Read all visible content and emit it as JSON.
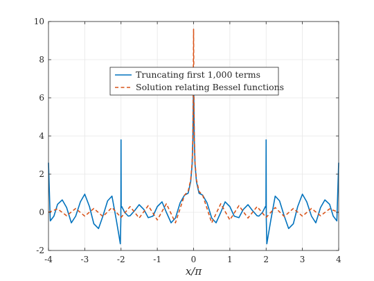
{
  "chart_data": {
    "type": "line",
    "xlabel": "x/π",
    "ylabel": "",
    "xlim": [
      -4,
      4
    ],
    "ylim": [
      -2,
      10
    ],
    "xticks": [
      -4,
      -3,
      -2,
      -1,
      0,
      1,
      2,
      3,
      4
    ],
    "xtick_labels": [
      "-4",
      "-3",
      "-2",
      "-1",
      "0",
      "1",
      "2",
      "3",
      "4"
    ],
    "yticks": [
      -2,
      0,
      2,
      4,
      6,
      8,
      10
    ],
    "ytick_labels": [
      "-2",
      "0",
      "2",
      "4",
      "6",
      "8",
      "10"
    ],
    "grid": true,
    "legend_position": "upper-center",
    "series": [
      {
        "name": "Truncating first 1,000 terms",
        "color": "#0072BD",
        "style": "solid",
        "x": [
          -4.0,
          -3.95,
          -3.85,
          -3.75,
          -3.62,
          -3.5,
          -3.37,
          -3.25,
          -3.12,
          -3.0,
          -2.87,
          -2.75,
          -2.62,
          -2.5,
          -2.37,
          -2.25,
          -2.13,
          -2.05,
          -2.02,
          -2.005,
          -2.0,
          -1.995,
          -1.98,
          -1.9,
          -1.8,
          -1.75,
          -1.62,
          -1.5,
          -1.37,
          -1.25,
          -1.12,
          -1.0,
          -0.87,
          -0.75,
          -0.62,
          -0.5,
          -0.37,
          -0.25,
          -0.15,
          -0.08,
          -0.04,
          -0.02,
          -0.01,
          0.0,
          0.01,
          0.02,
          0.04,
          0.08,
          0.15,
          0.25,
          0.37,
          0.5,
          0.62,
          0.75,
          0.87,
          1.0,
          1.12,
          1.25,
          1.37,
          1.5,
          1.62,
          1.75,
          1.8,
          1.9,
          1.98,
          1.995,
          2.0,
          2.005,
          2.02,
          2.05,
          2.13,
          2.25,
          2.37,
          2.5,
          2.62,
          2.75,
          2.87,
          3.0,
          3.12,
          3.25,
          3.37,
          3.5,
          3.62,
          3.75,
          3.85,
          3.95,
          4.0
        ],
        "y": [
          2.6,
          -0.45,
          -0.2,
          0.42,
          0.65,
          0.25,
          -0.55,
          -0.2,
          0.55,
          0.95,
          0.3,
          -0.6,
          -0.85,
          -0.2,
          0.6,
          0.85,
          -0.4,
          -1.3,
          -1.65,
          -0.4,
          3.8,
          0.25,
          0.3,
          0.0,
          -0.2,
          -0.18,
          0.1,
          0.4,
          0.15,
          -0.28,
          -0.2,
          0.3,
          0.55,
          0.0,
          -0.55,
          -0.3,
          0.5,
          0.9,
          1.0,
          1.6,
          2.5,
          3.8,
          5.5,
          7.4,
          5.5,
          3.8,
          2.5,
          1.6,
          1.0,
          0.9,
          0.5,
          -0.3,
          -0.55,
          0.0,
          0.55,
          0.3,
          -0.2,
          -0.28,
          0.15,
          0.4,
          0.1,
          -0.18,
          -0.2,
          0.0,
          0.3,
          0.25,
          3.8,
          -0.4,
          -1.65,
          -1.3,
          -0.4,
          0.85,
          0.6,
          -0.2,
          -0.85,
          -0.6,
          0.3,
          0.95,
          0.55,
          -0.2,
          -0.55,
          0.25,
          0.65,
          0.42,
          -0.2,
          -0.45,
          2.6
        ]
      },
      {
        "name": "Solution relating Bessel functions",
        "color": "#D95319",
        "style": "dashed",
        "x": [
          -4.0,
          -3.75,
          -3.5,
          -3.25,
          -3.0,
          -2.75,
          -2.5,
          -2.25,
          -2.0,
          -1.75,
          -1.5,
          -1.25,
          -1.0,
          -0.75,
          -0.5,
          -0.25,
          -0.15,
          -0.08,
          -0.04,
          -0.02,
          -0.01,
          0.0,
          0.01,
          0.02,
          0.04,
          0.08,
          0.15,
          0.25,
          0.5,
          0.75,
          1.0,
          1.25,
          1.5,
          1.75,
          2.0,
          2.25,
          2.5,
          2.75,
          3.0,
          3.25,
          3.5,
          3.75,
          4.0
        ],
        "y": [
          0.0,
          0.18,
          -0.18,
          0.2,
          -0.2,
          0.2,
          -0.22,
          0.25,
          -0.27,
          0.3,
          -0.3,
          0.35,
          -0.4,
          0.45,
          -0.55,
          0.9,
          1.1,
          1.7,
          2.6,
          4.0,
          6.0,
          9.6,
          6.0,
          4.0,
          2.6,
          1.7,
          1.1,
          0.9,
          -0.55,
          0.45,
          -0.4,
          0.35,
          -0.3,
          0.3,
          -0.27,
          0.25,
          -0.22,
          0.2,
          -0.2,
          0.2,
          -0.18,
          0.18,
          0.0
        ]
      }
    ]
  }
}
